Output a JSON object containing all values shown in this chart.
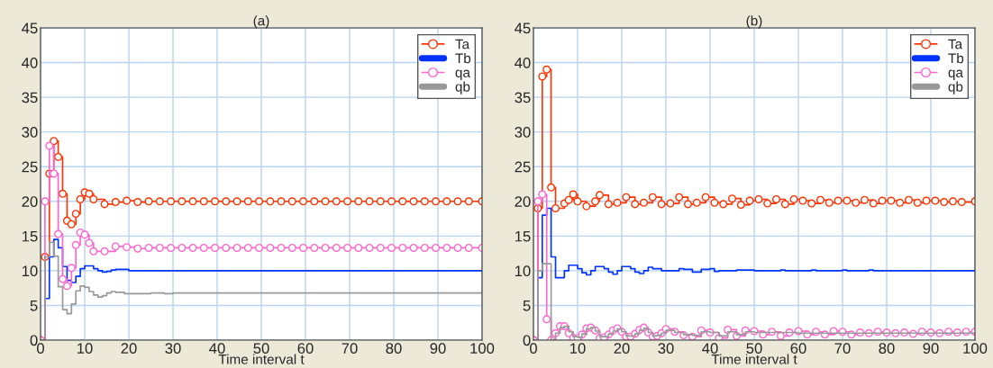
{
  "chart_data": [
    {
      "type": "step",
      "title": "(a)",
      "xlabel": "Time interval t",
      "xlim": [
        0,
        100
      ],
      "xticks": [
        0,
        10,
        20,
        30,
        40,
        50,
        60,
        70,
        80,
        90,
        100
      ],
      "ylim": [
        0,
        45
      ],
      "yticks": [
        0,
        5,
        10,
        15,
        20,
        25,
        30,
        35,
        40,
        45
      ],
      "grid": true,
      "legend": "top right",
      "series": [
        {
          "name": "Ta",
          "color": "#ff3300",
          "marker": "circle",
          "x": [
            0,
            1,
            2,
            3,
            4,
            5,
            6,
            7,
            8,
            9,
            10,
            11,
            12,
            14.5,
            17,
            19.5,
            22,
            24.5,
            27,
            29.5,
            32,
            34.5,
            37,
            39.5,
            42,
            44.5,
            47,
            49.5,
            52,
            54.5,
            57,
            59.5,
            62,
            64.5,
            67,
            69.5,
            72,
            74.5,
            77,
            79.5,
            82,
            84.5,
            87,
            89.5,
            92,
            94.5,
            97,
            100
          ],
          "values": [
            0,
            12,
            24,
            28.7,
            26.4,
            21.1,
            17.2,
            16.7,
            18.2,
            20.3,
            21.3,
            21.1,
            20.3,
            19.6,
            19.9,
            20.1,
            19.9,
            20,
            20,
            20,
            20,
            20,
            20,
            20,
            20,
            20,
            20,
            20,
            20,
            20,
            20,
            20,
            20,
            20,
            20,
            20,
            20,
            20,
            20,
            20,
            20,
            20,
            20,
            20,
            20,
            20,
            20,
            20
          ]
        },
        {
          "name": "Tb",
          "color": "#0033ff",
          "marker": "none",
          "x": [
            0,
            1,
            2,
            3,
            4,
            5,
            6,
            7,
            8,
            9,
            10,
            11,
            12,
            13,
            14,
            15,
            16,
            17,
            20,
            100
          ],
          "values": [
            0,
            6,
            12,
            14.5,
            13.3,
            10.6,
            8.6,
            8.3,
            9.2,
            10.3,
            10.7,
            10.7,
            10.3,
            10,
            9.8,
            9.9,
            10.1,
            10.2,
            10,
            10
          ]
        },
        {
          "name": "qa",
          "color": "#ff66cc",
          "marker": "circle",
          "x": [
            0,
            1,
            2,
            3,
            4,
            5,
            6,
            7,
            8,
            9,
            10,
            11,
            12,
            14.5,
            17,
            19.5,
            22,
            24.5,
            27,
            29.5,
            32,
            34.5,
            37,
            39.5,
            42,
            44.5,
            47,
            49.5,
            52,
            54.5,
            57,
            59.5,
            62,
            64.5,
            67,
            69.5,
            72,
            74.5,
            77,
            79.5,
            82,
            84.5,
            87,
            89.5,
            92,
            94.5,
            97,
            100
          ],
          "values": [
            0,
            20,
            28,
            24,
            15.3,
            8.8,
            7.8,
            10.4,
            13.7,
            15.5,
            15.2,
            14,
            12.8,
            12.8,
            13.5,
            13.4,
            13.2,
            13.3,
            13.3,
            13.3,
            13.3,
            13.3,
            13.3,
            13.3,
            13.3,
            13.3,
            13.3,
            13.3,
            13.3,
            13.3,
            13.3,
            13.3,
            13.3,
            13.3,
            13.3,
            13.3,
            13.3,
            13.3,
            13.3,
            13.3,
            13.3,
            13.3,
            13.3,
            13.3,
            13.3,
            13.3,
            13.3,
            13.3
          ]
        },
        {
          "name": "qb",
          "color": "#999999",
          "marker": "none",
          "x": [
            0,
            1,
            2,
            3,
            4,
            5,
            6,
            7,
            8,
            9,
            10,
            11,
            12,
            13,
            14,
            15,
            16,
            17,
            19,
            25,
            28,
            30,
            100
          ],
          "values": [
            0,
            12,
            14.1,
            12.1,
            7.7,
            4.4,
            3.8,
            5.2,
            7.1,
            7.8,
            7.6,
            7,
            6.5,
            6.2,
            6.4,
            6.8,
            7,
            6.9,
            6.7,
            6.8,
            6.7,
            6.8,
            6.8
          ]
        }
      ]
    },
    {
      "type": "step",
      "title": "(b)",
      "xlabel": "Time interval t",
      "xlim": [
        0,
        100
      ],
      "xticks": [
        0,
        10,
        20,
        30,
        40,
        50,
        60,
        70,
        80,
        90,
        100
      ],
      "ylim": [
        0,
        45
      ],
      "yticks": [
        0,
        5,
        10,
        15,
        20,
        25,
        30,
        35,
        40,
        45
      ],
      "grid": true,
      "legend": "top right",
      "series": [
        {
          "name": "Ta",
          "color": "#ff3300",
          "marker": "circle",
          "x": [
            0,
            1,
            2,
            3,
            4,
            5,
            7,
            8,
            9,
            10,
            12,
            14,
            15,
            17,
            19,
            21,
            23,
            25,
            27,
            29,
            31,
            33,
            35,
            37,
            39,
            41,
            43,
            45,
            47,
            49,
            51,
            53,
            55,
            57,
            59,
            61,
            63,
            65,
            67,
            69,
            71,
            73,
            75,
            77,
            79,
            81,
            83,
            85,
            87,
            89,
            91,
            93,
            95,
            97,
            100
          ],
          "values": [
            0,
            19,
            38,
            39,
            22,
            19,
            19.7,
            20.2,
            21,
            20,
            19.3,
            20,
            20.9,
            19.6,
            19.8,
            20.6,
            19.6,
            19.8,
            20.6,
            19.6,
            19.7,
            20.6,
            19.6,
            19.8,
            20.6,
            19.8,
            19.6,
            20.4,
            19.5,
            20.1,
            20.3,
            19.7,
            20.3,
            19.6,
            20.3,
            20.1,
            19.7,
            20.2,
            19.8,
            20.1,
            20.1,
            19.8,
            20.2,
            19.7,
            20.1,
            20.1,
            19.8,
            20.2,
            19.8,
            20.1,
            20.1,
            19.9,
            20,
            19.9,
            20
          ]
        },
        {
          "name": "Tb",
          "color": "#0033ff",
          "marker": "none",
          "x": [
            0,
            1,
            2,
            3,
            4,
            5,
            7,
            8,
            10,
            11,
            12,
            13,
            14,
            16,
            17,
            18,
            19,
            20,
            22,
            23,
            24,
            25,
            26,
            27,
            29,
            31,
            33,
            34,
            36,
            38,
            40,
            41,
            42,
            44,
            46,
            49,
            50,
            56,
            57,
            63,
            64,
            70,
            71,
            76,
            77,
            100
          ],
          "values": [
            0,
            9,
            18,
            19,
            12,
            9,
            10,
            10.8,
            10.3,
            9.7,
            9.4,
            10,
            10.6,
            10.3,
            9.8,
            9.5,
            10,
            10.6,
            10.3,
            9.8,
            9.6,
            10,
            10.5,
            10.3,
            10,
            10,
            10.3,
            10.2,
            9.8,
            10.2,
            10.3,
            9.9,
            10,
            10,
            10.1,
            10.1,
            10,
            10.1,
            10,
            10.1,
            10,
            10.1,
            10,
            10.1,
            10,
            10
          ]
        },
        {
          "name": "qa",
          "color": "#ff66cc",
          "marker": "circle",
          "x": [
            0,
            1,
            2,
            3,
            4,
            5,
            6,
            7,
            8,
            9,
            10,
            11,
            12,
            13,
            14,
            15,
            16,
            17,
            18,
            19,
            20,
            21,
            22,
            23,
            24,
            25,
            26,
            27,
            28,
            29,
            30,
            32,
            34,
            36,
            38,
            40,
            42,
            44,
            46,
            48,
            50,
            52,
            54,
            56,
            58,
            60,
            62,
            64,
            66,
            68,
            70,
            72,
            74,
            76,
            78,
            80,
            82,
            84,
            86,
            88,
            90,
            92,
            94,
            96,
            98,
            100
          ],
          "values": [
            0,
            20,
            21,
            3,
            0,
            1,
            2,
            2,
            1,
            0.3,
            0.3,
            0.8,
            1.7,
            1.8,
            1.4,
            0.3,
            0.4,
            0.8,
            1.4,
            1.7,
            1.2,
            0.5,
            0.5,
            0.9,
            1.5,
            1.8,
            1.1,
            0.5,
            0.6,
            1,
            1.6,
            1.2,
            0.7,
            0.5,
            1.4,
            1.1,
            0.3,
            1.5,
            0.6,
            1.4,
            1.3,
            0.8,
            1.2,
            0.6,
            1.1,
            1.3,
            0.8,
            1.2,
            0.8,
            1.3,
            1.2,
            0.8,
            1.1,
            1,
            1.2,
            1.1,
            1,
            1.1,
            0.9,
            1.2,
            1.1,
            1,
            1.2,
            1.1,
            1.2,
            1.2
          ]
        },
        {
          "name": "qb",
          "color": "#999999",
          "marker": "none",
          "x": [
            0,
            1,
            2,
            3,
            4,
            5,
            6,
            7,
            8,
            9,
            10,
            11,
            12,
            13,
            14,
            15,
            16,
            17,
            18,
            19,
            20,
            21,
            22,
            23,
            24,
            25,
            26,
            27,
            28,
            29,
            30,
            32,
            34,
            36,
            38,
            40,
            42,
            44,
            46,
            48,
            50,
            60,
            70,
            80,
            90,
            100
          ],
          "values": [
            0,
            10,
            11,
            11,
            0,
            1,
            1.8,
            2,
            1.2,
            0.5,
            0.4,
            0.9,
            1.6,
            1.8,
            1.3,
            0.5,
            0.5,
            0.9,
            1.3,
            1.6,
            1.2,
            0.6,
            0.6,
            0.9,
            1.4,
            1.7,
            1.1,
            0.6,
            0.7,
            1,
            1.4,
            1.1,
            0.8,
            0.7,
            1.2,
            1.1,
            0.6,
            1.2,
            0.8,
            1.2,
            1.1,
            1,
            1,
            1,
            1,
            1
          ]
        }
      ]
    }
  ]
}
